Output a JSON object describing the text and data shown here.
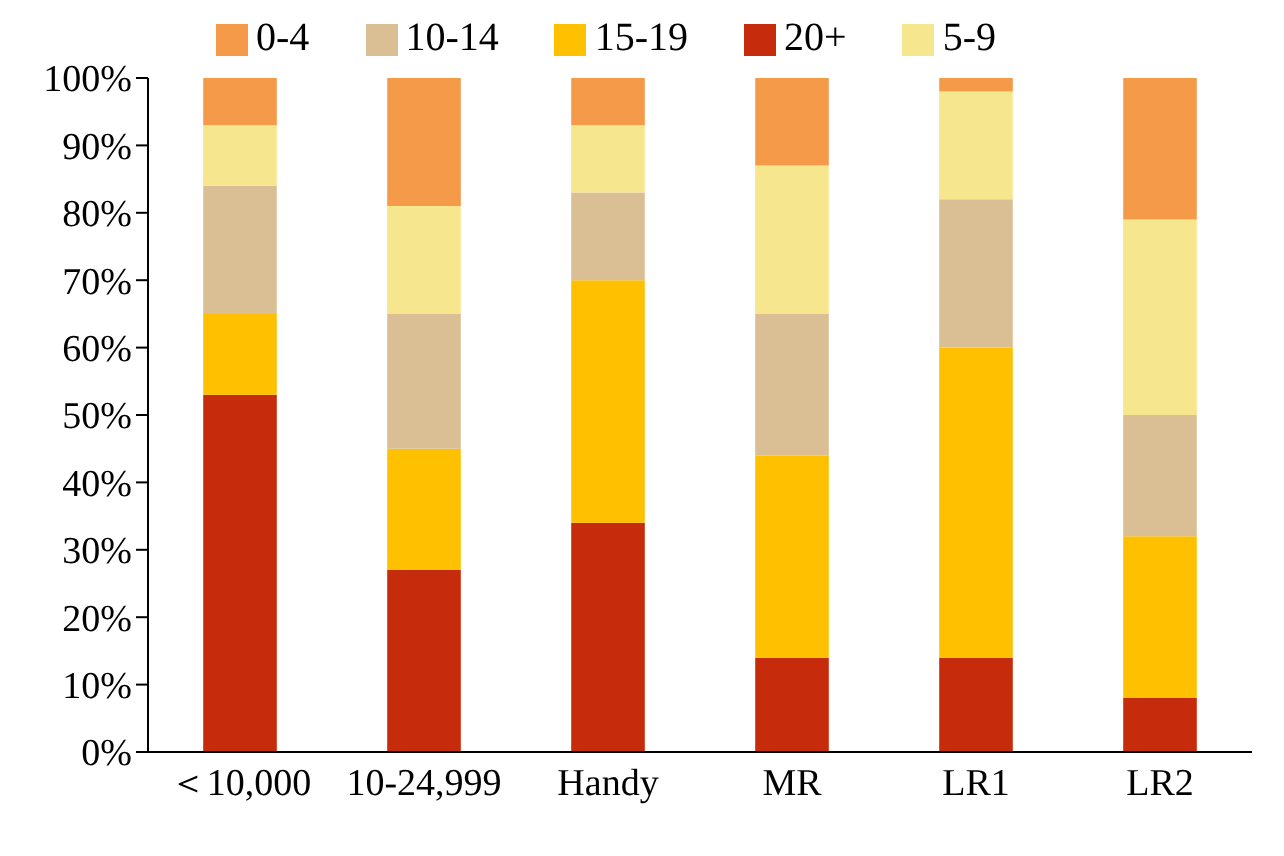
{
  "chart_data": {
    "type": "bar",
    "stacked": true,
    "categories": [
      "＜10,000",
      "10-24,999",
      "Handy",
      "MR",
      "LR1",
      "LR2"
    ],
    "series": [
      {
        "name": "20+",
        "color": "#c62b0b",
        "values": [
          53,
          27,
          34,
          14,
          14,
          8
        ]
      },
      {
        "name": "15-19",
        "color": "#ffc000",
        "values": [
          12,
          18,
          36,
          30,
          46,
          24
        ]
      },
      {
        "name": "10-14",
        "color": "#d9bf93",
        "values": [
          19,
          20,
          13,
          21,
          22,
          18
        ]
      },
      {
        "name": "5-9",
        "color": "#f6e68e",
        "values": [
          9,
          16,
          10,
          22,
          16,
          29
        ]
      },
      {
        "name": "0-4",
        "color": "#f59a48",
        "values": [
          7,
          19,
          7,
          13,
          2,
          21
        ]
      }
    ],
    "ylim": [
      0,
      100
    ],
    "yticks": [
      {
        "value": 0,
        "label": "0%"
      },
      {
        "value": 10,
        "label": "10%"
      },
      {
        "value": 20,
        "label": "20%"
      },
      {
        "value": 30,
        "label": "30%"
      },
      {
        "value": 40,
        "label": "40%"
      },
      {
        "value": 50,
        "label": "50%"
      },
      {
        "value": 60,
        "label": "60%"
      },
      {
        "value": 70,
        "label": "70%"
      },
      {
        "value": 80,
        "label": "80%"
      },
      {
        "value": 90,
        "label": "90%"
      },
      {
        "value": 100,
        "label": "100%"
      }
    ],
    "grid": false,
    "legend": "top"
  }
}
